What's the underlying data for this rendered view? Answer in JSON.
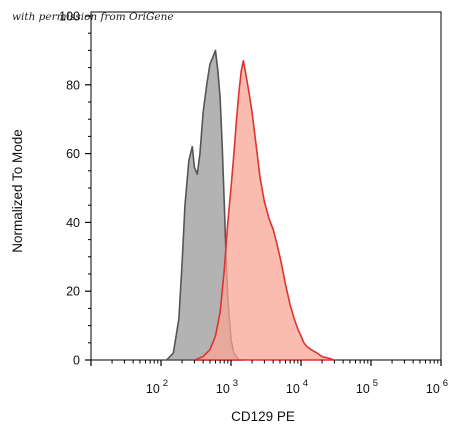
{
  "watermark": "with permission from OriGene",
  "chart_data": {
    "type": "area",
    "title": "",
    "xlabel": "CD129 PE",
    "ylabel": "Normalized To Mode",
    "x_scale": "log",
    "xlim": [
      10,
      1000000
    ],
    "ylim": [
      0,
      100
    ],
    "x_ticks": [
      {
        "value": 100,
        "base": "10",
        "exp": "2"
      },
      {
        "value": 1000,
        "base": "10",
        "exp": "3"
      },
      {
        "value": 10000,
        "base": "10",
        "exp": "4"
      },
      {
        "value": 100000,
        "base": "10",
        "exp": "5"
      },
      {
        "value": 1000000,
        "base": "10",
        "exp": "6"
      }
    ],
    "y_ticks": [
      0,
      20,
      40,
      60,
      80,
      100
    ],
    "grid": false,
    "legend": "none",
    "series": [
      {
        "fill": "#999999",
        "stroke": "#555555",
        "x": [
          120,
          150,
          180,
          200,
          220,
          250,
          280,
          300,
          330,
          360,
          400,
          450,
          500,
          550,
          600,
          650,
          700,
          750,
          800,
          850,
          900,
          1000,
          1100,
          1200,
          1300,
          1500
        ],
        "y": [
          0,
          2,
          12,
          28,
          45,
          58,
          62,
          56,
          54,
          60,
          72,
          80,
          86,
          88,
          90,
          84,
          76,
          62,
          46,
          30,
          18,
          6,
          2,
          1,
          0,
          0
        ]
      },
      {
        "fill": "#f9a696",
        "stroke": "#dd3333",
        "x": [
          300,
          400,
          500,
          600,
          700,
          800,
          900,
          1000,
          1100,
          1200,
          1300,
          1400,
          1500,
          1600,
          1800,
          2000,
          2300,
          2600,
          3000,
          3500,
          4000,
          4500,
          5000,
          5500,
          6000,
          7000,
          8000,
          9000,
          10000,
          11000,
          12000,
          14000,
          17000,
          20000,
          25000,
          30000
        ],
        "y": [
          0,
          1,
          3,
          7,
          14,
          26,
          40,
          50,
          60,
          70,
          78,
          84,
          87,
          84,
          78,
          72,
          62,
          53,
          46,
          41,
          38,
          34,
          30,
          26,
          22,
          16,
          12,
          9,
          7,
          5,
          4,
          3,
          2,
          1,
          0.5,
          0
        ]
      }
    ]
  }
}
